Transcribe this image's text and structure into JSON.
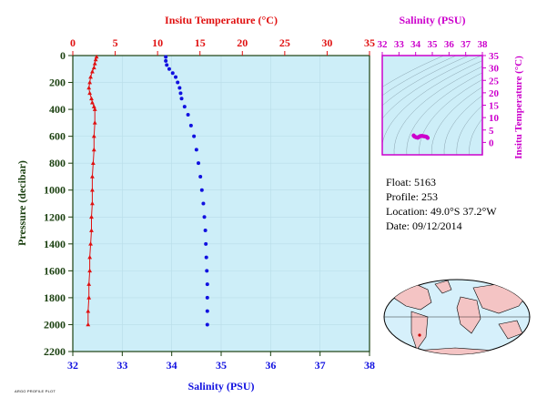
{
  "meta": {
    "float_label": "Float:",
    "float_value": "5163",
    "profile_label": "Profile:",
    "profile_value": "253",
    "location_label": "Location:",
    "location_value": "49.0°S  37.2°W",
    "date_label": "Date:",
    "date_value": "09/12/2014",
    "stamp": "ARGO PROFILE PLOT"
  },
  "colors": {
    "temp": "#e01010",
    "sal": "#1010e0",
    "ts": "#cc00cc",
    "axis_dark": "#1b4010",
    "plot_bg": "#cdeef8"
  },
  "chart_data": [
    {
      "type": "scatter",
      "ylabel": "Pressure (decibar)",
      "xlabel": "Salinity (PSU)",
      "x2label": "Insitu Temperature (°C)",
      "ylim": [
        2200,
        0
      ],
      "xlim": [
        32,
        38
      ],
      "x2lim": [
        0,
        35
      ],
      "yticks": [
        "0",
        "200",
        "400",
        "600",
        "800",
        "1000",
        "1200",
        "1400",
        "1600",
        "1800",
        "2000",
        "2200"
      ],
      "xticks": [
        "32",
        "33",
        "34",
        "35",
        "36",
        "37",
        "38"
      ],
      "x2ticks": [
        "0",
        "5",
        "10",
        "15",
        "20",
        "25",
        "30",
        "35"
      ],
      "grid": true,
      "series": [
        {
          "name": "Insitu Temperature",
          "axis": "top",
          "marker": "triangle",
          "points": [
            [
              2.8,
              10
            ],
            [
              2.7,
              30
            ],
            [
              2.6,
              60
            ],
            [
              2.5,
              90
            ],
            [
              2.3,
              120
            ],
            [
              2.1,
              160
            ],
            [
              2.0,
              200
            ],
            [
              1.9,
              240
            ],
            [
              2.0,
              280
            ],
            [
              2.2,
              320
            ],
            [
              2.3,
              350
            ],
            [
              2.5,
              380
            ],
            [
              2.6,
              400
            ],
            [
              2.6,
              500
            ],
            [
              2.5,
              600
            ],
            [
              2.5,
              700
            ],
            [
              2.4,
              800
            ],
            [
              2.3,
              900
            ],
            [
              2.3,
              1000
            ],
            [
              2.3,
              1100
            ],
            [
              2.2,
              1200
            ],
            [
              2.2,
              1300
            ],
            [
              2.1,
              1400
            ],
            [
              2.0,
              1500
            ],
            [
              2.0,
              1600
            ],
            [
              1.9,
              1700
            ],
            [
              1.9,
              1800
            ],
            [
              1.8,
              1900
            ],
            [
              1.8,
              2000
            ]
          ]
        },
        {
          "name": "Salinity",
          "axis": "bottom",
          "marker": "circle",
          "points": [
            [
              33.88,
              10
            ],
            [
              33.88,
              40
            ],
            [
              33.9,
              70
            ],
            [
              33.95,
              100
            ],
            [
              34.02,
              130
            ],
            [
              34.08,
              160
            ],
            [
              34.12,
              200
            ],
            [
              34.16,
              240
            ],
            [
              34.18,
              280
            ],
            [
              34.2,
              320
            ],
            [
              34.26,
              380
            ],
            [
              34.33,
              440
            ],
            [
              34.39,
              520
            ],
            [
              34.45,
              600
            ],
            [
              34.5,
              700
            ],
            [
              34.54,
              800
            ],
            [
              34.58,
              900
            ],
            [
              34.61,
              1000
            ],
            [
              34.64,
              1100
            ],
            [
              34.66,
              1200
            ],
            [
              34.68,
              1300
            ],
            [
              34.69,
              1400
            ],
            [
              34.7,
              1500
            ],
            [
              34.71,
              1600
            ],
            [
              34.72,
              1700
            ],
            [
              34.72,
              1800
            ],
            [
              34.72,
              1900
            ],
            [
              34.72,
              2000
            ]
          ]
        }
      ]
    },
    {
      "type": "scatter",
      "title": "Salinity (PSU)",
      "ylabel": "Insitu Temperature (°C)",
      "xlim": [
        32,
        38
      ],
      "ylim": [
        -5,
        35
      ],
      "xticks": [
        "32",
        "33",
        "34",
        "35",
        "36",
        "37",
        "38"
      ],
      "yticks": [
        "0",
        "5",
        "10",
        "15",
        "20",
        "25",
        "30",
        "35"
      ],
      "series": [
        {
          "name": "T-S",
          "points": [
            [
              33.88,
              2.8
            ],
            [
              33.9,
              2.6
            ],
            [
              33.95,
              2.3
            ],
            [
              34.02,
              2.1
            ],
            [
              34.08,
              2.0
            ],
            [
              34.12,
              1.9
            ],
            [
              34.16,
              2.0
            ],
            [
              34.2,
              2.2
            ],
            [
              34.26,
              2.5
            ],
            [
              34.33,
              2.6
            ],
            [
              34.4,
              2.6
            ],
            [
              34.48,
              2.5
            ],
            [
              34.55,
              2.4
            ],
            [
              34.62,
              2.3
            ],
            [
              34.66,
              2.2
            ],
            [
              34.7,
              2.0
            ],
            [
              34.72,
              1.8
            ]
          ]
        }
      ]
    }
  ]
}
